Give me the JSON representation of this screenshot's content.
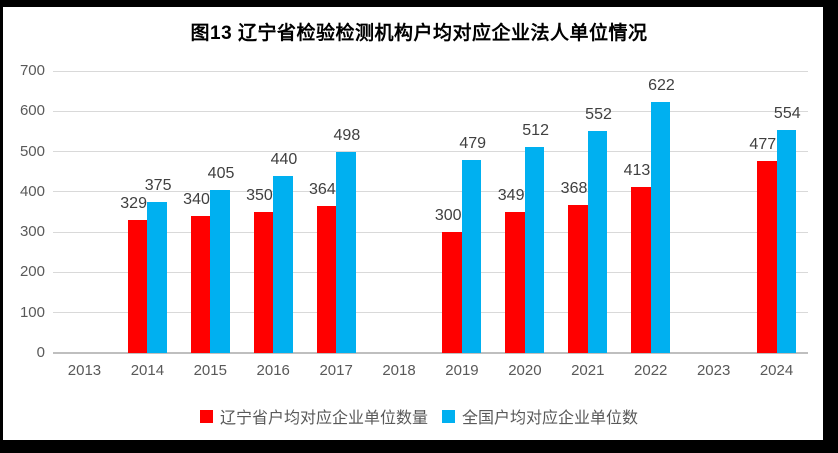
{
  "chart_data": {
    "type": "bar",
    "title": "图13 辽宁省检验检测机构户均对应企业法人单位情况",
    "categories": [
      "2013",
      "2014",
      "2015",
      "2016",
      "2017",
      "2018",
      "2019",
      "2020",
      "2021",
      "2022",
      "2023",
      "2024"
    ],
    "series": [
      {
        "name": "辽宁省户均对应企业单位数量",
        "color": "#FF0000",
        "values": [
          null,
          329,
          340,
          350,
          364,
          null,
          300,
          349,
          368,
          413,
          null,
          477
        ]
      },
      {
        "name": "全国户均对应企业单位数",
        "color": "#00B0F0",
        "values": [
          null,
          375,
          405,
          440,
          498,
          null,
          479,
          512,
          552,
          622,
          null,
          554
        ]
      }
    ],
    "xlabel": "",
    "ylabel": "",
    "ylim": [
      0,
      700
    ],
    "yticks": [
      0,
      100,
      200,
      300,
      400,
      500,
      600,
      700
    ],
    "grid": true,
    "data_labels": true,
    "legend_position": "bottom"
  },
  "colors": {
    "frame": "#000000",
    "background": "#FFFFFF",
    "gridline": "#D9D9D9",
    "axis_text": "#595959",
    "data_label_text": "#404040",
    "series_red": "#FF0000",
    "series_blue": "#00B0F0"
  }
}
